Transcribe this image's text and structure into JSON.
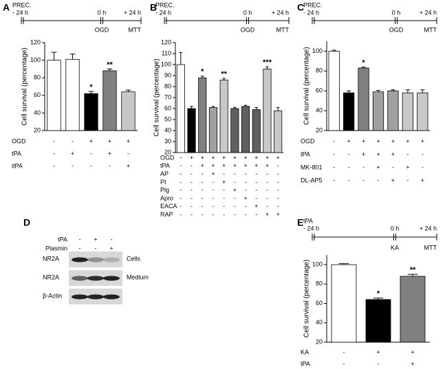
{
  "chart_data": [
    {
      "type": "bar",
      "panel": "A",
      "timeline": {
        "top": "PREC.",
        "start": "- 24 h",
        "zero": "0 h",
        "end": "+ 24 h",
        "event": "OGD",
        "assay": "MTT"
      },
      "ylabel": "Cell survival (percentage)",
      "ylim": [
        20,
        120
      ],
      "yticks": [
        20,
        40,
        60,
        80,
        100,
        120
      ],
      "values": [
        100,
        101,
        62,
        88,
        64
      ],
      "errors": [
        9,
        6,
        2.5,
        2,
        2
      ],
      "colors": [
        "#ffffff",
        "#ffffff",
        "#000000",
        "#808080",
        "#c8c8c8"
      ],
      "annotations": [
        null,
        null,
        "*",
        "**",
        null
      ],
      "conditions": [
        {
          "name": "OGD",
          "signs": [
            "-",
            "-",
            "+",
            "+",
            "+"
          ]
        },
        {
          "name": "tPA",
          "signs": [
            "-",
            "+",
            "-",
            "+",
            "-"
          ]
        },
        {
          "name": "itPA",
          "signs": [
            "-",
            "-",
            "-",
            "-",
            "+"
          ]
        }
      ]
    },
    {
      "type": "bar",
      "panel": "B",
      "timeline": {
        "top": "PREC.",
        "start": "- 24 h",
        "zero": "0 h",
        "end": "+ 24 h",
        "event": "OGD",
        "assay": "MTT"
      },
      "ylabel": "Cell survival (percentage)",
      "ylim": [
        20,
        120
      ],
      "yticks": [
        20,
        30,
        40,
        50,
        60,
        70,
        80,
        90,
        100,
        110,
        120
      ],
      "values": [
        100,
        60,
        88,
        61,
        86,
        60,
        62,
        59,
        96,
        58
      ],
      "errors": [
        11,
        2,
        1.5,
        1,
        1.5,
        1,
        1,
        2,
        2,
        3
      ],
      "colors": [
        "#ffffff",
        "#000000",
        "#808080",
        "#a0a0a0",
        "#c8c8c8",
        "#606060",
        "#606060",
        "#606060",
        "#c8c8c8",
        "#c8c8c8"
      ],
      "annotations": [
        null,
        null,
        "*",
        null,
        "**",
        null,
        null,
        null,
        "***",
        null
      ],
      "conditions": [
        {
          "name": "OGD",
          "signs": [
            "-",
            "+",
            "+",
            "+",
            "+",
            "+",
            "+",
            "+",
            "+",
            "+"
          ]
        },
        {
          "name": "tPA",
          "signs": [
            "-",
            "-",
            "+",
            "+",
            "+",
            "+",
            "+",
            "+",
            "+",
            "-"
          ]
        },
        {
          "name": "AP",
          "signs": [
            "-",
            "-",
            "-",
            "+",
            "-",
            "-",
            "-",
            "-",
            "-",
            "-"
          ]
        },
        {
          "name": "PI",
          "signs": [
            "-",
            "-",
            "-",
            "-",
            "+",
            "-",
            "-",
            "-",
            "-",
            "-"
          ]
        },
        {
          "name": "Plg",
          "signs": [
            "-",
            "-",
            "-",
            "-",
            "-",
            "+",
            "-",
            "-",
            "-",
            "-"
          ]
        },
        {
          "name": "Apro",
          "signs": [
            "-",
            "-",
            "-",
            "-",
            "-",
            "-",
            "+",
            "-",
            "-",
            "-"
          ]
        },
        {
          "name": "EACA",
          "signs": [
            "-",
            "-",
            "-",
            "-",
            "-",
            "-",
            "-",
            "+",
            "-",
            "-"
          ]
        },
        {
          "name": "RAP",
          "signs": [
            "-",
            "-",
            "-",
            "-",
            "-",
            "-",
            "-",
            "-",
            "+",
            "+"
          ]
        }
      ]
    },
    {
      "type": "bar",
      "panel": "C",
      "timeline": {
        "top": "PREC.",
        "start": "- 24 h",
        "zero": "0 h",
        "end": "+ 24 h",
        "event": "OGD",
        "assay": "MTT"
      },
      "ylabel": "Cell survival (percentage)",
      "ylim": [
        20,
        110
      ],
      "yticks": [
        20,
        40,
        60,
        80,
        100
      ],
      "values": [
        100,
        58,
        83,
        59,
        60,
        58,
        58
      ],
      "errors": [
        1,
        2,
        1,
        1.5,
        1,
        3,
        3
      ],
      "colors": [
        "#ffffff",
        "#000000",
        "#808080",
        "#a0a0a0",
        "#a0a0a0",
        "#c8c8c8",
        "#c8c8c8"
      ],
      "annotations": [
        null,
        null,
        "*",
        null,
        null,
        null,
        null
      ],
      "conditions": [
        {
          "name": "OGD",
          "signs": [
            "-",
            "+",
            "+",
            "+",
            "+",
            "+",
            "+"
          ]
        },
        {
          "name": "tPA",
          "signs": [
            "-",
            "-",
            "+",
            "+",
            "+",
            "-",
            "-"
          ]
        },
        {
          "name": "MK-801",
          "signs": [
            "-",
            "-",
            "-",
            "+",
            "-",
            "+",
            "-"
          ]
        },
        {
          "name": "DL-AP5",
          "signs": [
            "-",
            "-",
            "-",
            "-",
            "+",
            "-",
            "+"
          ]
        }
      ]
    },
    {
      "type": "bar",
      "panel": "E",
      "timeline": {
        "top": "tPA",
        "start": "- 24 h",
        "zero": "0 h",
        "end": "+ 24 h",
        "event": "KA",
        "assay": "MTT"
      },
      "ylabel": "Cell survival (percentage)",
      "ylim": [
        20,
        110
      ],
      "yticks": [
        20,
        40,
        60,
        80,
        100
      ],
      "values": [
        100,
        64,
        88
      ],
      "errors": [
        1,
        1.5,
        2
      ],
      "colors": [
        "#ffffff",
        "#000000",
        "#808080"
      ],
      "annotations": [
        null,
        "*",
        "**"
      ],
      "conditions": [
        {
          "name": "KA",
          "signs": [
            "-",
            "+",
            "+"
          ]
        },
        {
          "name": "tPA",
          "signs": [
            "-",
            "-",
            "+"
          ]
        }
      ]
    }
  ],
  "blot": {
    "panel": "D",
    "treatments": [
      {
        "name": "tPA",
        "signs": [
          "-",
          "+",
          "-"
        ]
      },
      {
        "name": "Plasmin",
        "signs": [
          "-",
          "-",
          "+"
        ]
      }
    ],
    "rows": [
      {
        "protein": "NR2A",
        "fraction": "Cells"
      },
      {
        "protein": "NR2A",
        "fraction": "Medium"
      },
      {
        "protein": "β-Actin"
      }
    ]
  }
}
